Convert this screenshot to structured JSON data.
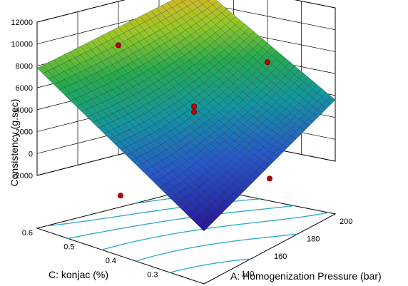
{
  "chart_data": {
    "type": "surface3d",
    "title": "",
    "zlabel": "Consistency (g.sec)",
    "xlabel": "A: Homogenization Pressure (bar)",
    "ylabel": "C: konjac (%)",
    "zlim": [
      -2000,
      12000
    ],
    "z_ticks": [
      "12000",
      "10000",
      "8000",
      "6000",
      "4000",
      "2000",
      "0",
      "-2000"
    ],
    "x_ticks": [
      "140",
      "160",
      "180",
      "200"
    ],
    "y_ticks": [
      "0.6",
      "0.5",
      "0.4",
      "0.3"
    ],
    "x_range": [
      120,
      200
    ],
    "y_range": [
      0.2,
      0.6
    ],
    "grid": true,
    "floor_color": "#ffff00",
    "contour_color": "#2aa9c8",
    "surface": {
      "corners": [
        {
          "A": 120,
          "C": 0.6,
          "z": 7800
        },
        {
          "A": 200,
          "C": 0.6,
          "z": 11500
        },
        {
          "A": 200,
          "C": 0.2,
          "z": 3600
        },
        {
          "A": 120,
          "C": 0.2,
          "z": -2000
        }
      ],
      "center_z": 4300
    },
    "design_points": [
      {
        "A": 160,
        "C": 0.6,
        "z": 8000
      },
      {
        "A": 200,
        "C": 0.4,
        "z": 5800
      },
      {
        "A": 160,
        "C": 0.4,
        "z": 4300
      },
      {
        "A": 160,
        "C": 0.4,
        "z": 3800
      },
      {
        "A": 120,
        "C": 0.4,
        "z": -1300
      },
      {
        "A": 160,
        "C": 0.2,
        "z": -400
      }
    ],
    "point_color": "#c00000"
  }
}
